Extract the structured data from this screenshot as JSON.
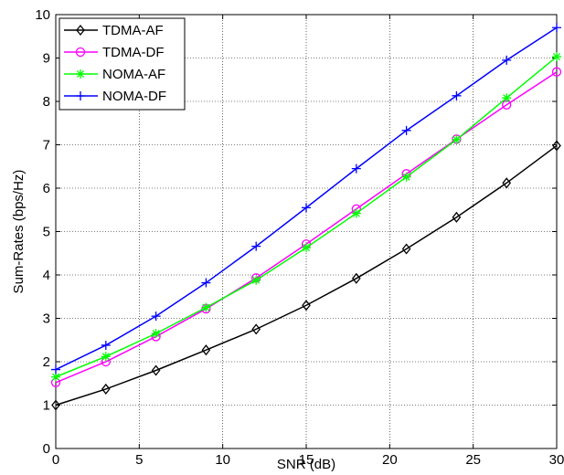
{
  "chart_data": {
    "type": "line",
    "xlabel": "SNR (dB)",
    "ylabel": "Sum-Rates (bps/Hz)",
    "xlim": [
      0,
      30
    ],
    "ylim": [
      0,
      10
    ],
    "xticks": [
      "0",
      "5",
      "10",
      "15",
      "20",
      "25",
      "30"
    ],
    "yticks": [
      "0",
      "1",
      "2",
      "3",
      "4",
      "5",
      "6",
      "7",
      "8",
      "9",
      "10"
    ],
    "grid": true,
    "legend_position": "top-left",
    "x": [
      0,
      3,
      6,
      9,
      12,
      15,
      18,
      21,
      24,
      27,
      30
    ],
    "series": [
      {
        "name": "TDMA-AF",
        "color": "#000000",
        "marker": "diamond",
        "values": [
          1.0,
          1.37,
          1.8,
          2.27,
          2.75,
          3.3,
          3.92,
          4.6,
          5.33,
          6.12,
          6.98
        ]
      },
      {
        "name": "TDMA-DF",
        "color": "#ff00ff",
        "marker": "circle",
        "values": [
          1.52,
          2.0,
          2.58,
          3.22,
          3.93,
          4.71,
          5.52,
          6.33,
          7.13,
          7.92,
          8.68
        ]
      },
      {
        "name": "NOMA-AF",
        "color": "#00ff00",
        "marker": "star",
        "values": [
          1.65,
          2.12,
          2.65,
          3.25,
          3.88,
          4.63,
          5.42,
          6.26,
          7.12,
          8.08,
          9.03
        ]
      },
      {
        "name": "NOMA-DF",
        "color": "#0000ff",
        "marker": "plus",
        "values": [
          1.82,
          2.38,
          3.05,
          3.82,
          4.66,
          5.55,
          6.45,
          7.33,
          8.13,
          8.95,
          9.7
        ]
      }
    ]
  }
}
